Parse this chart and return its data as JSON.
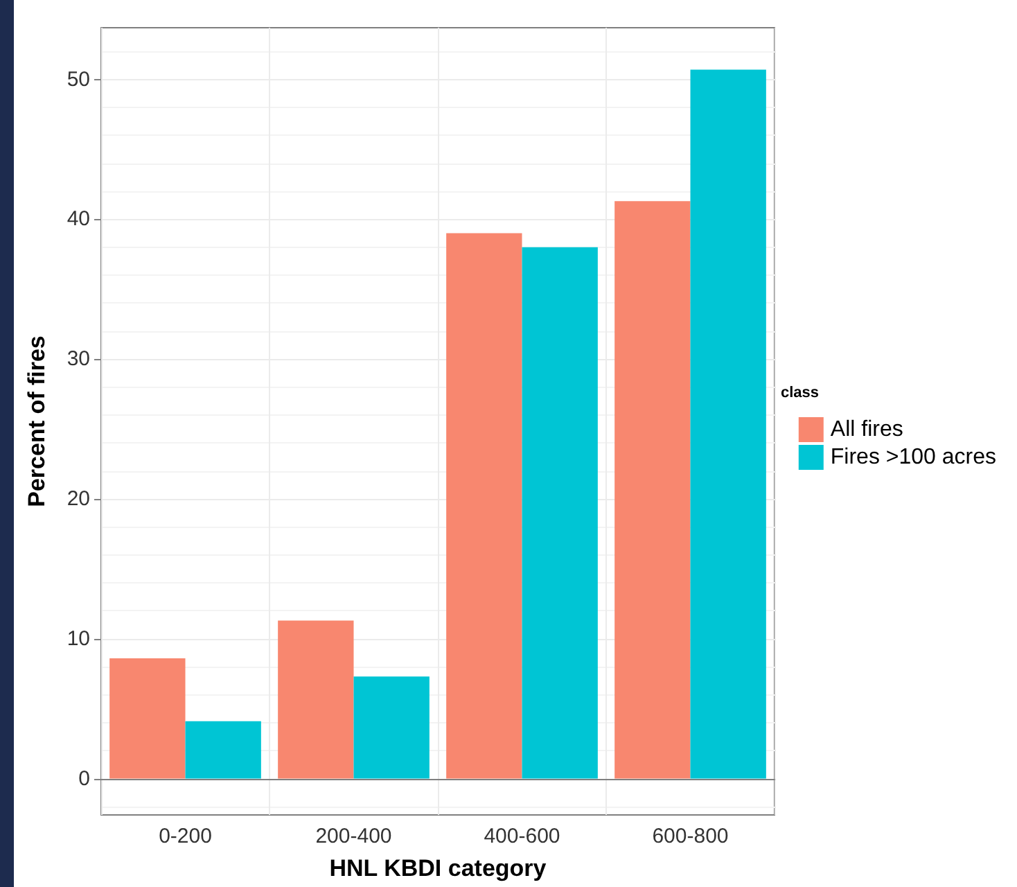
{
  "chart_data": {
    "type": "bar",
    "xlabel": "HNL KBDI category",
    "ylabel": "Percent of fires",
    "legend_title": "class",
    "categories": [
      "0-200",
      "200-400",
      "400-600",
      "600-800"
    ],
    "series": [
      {
        "name": "All fires",
        "color": "#f8876f",
        "values": [
          8.6,
          11.3,
          39.0,
          41.3
        ]
      },
      {
        "name": "Fires >100 acres",
        "color": "#00c5d4",
        "values": [
          4.1,
          7.3,
          38.0,
          50.7
        ]
      }
    ],
    "ylim": [
      -2.6,
      53.7
    ],
    "yticks": [
      0,
      10,
      20,
      30,
      40,
      50
    ],
    "grid": true,
    "legend": "right"
  }
}
